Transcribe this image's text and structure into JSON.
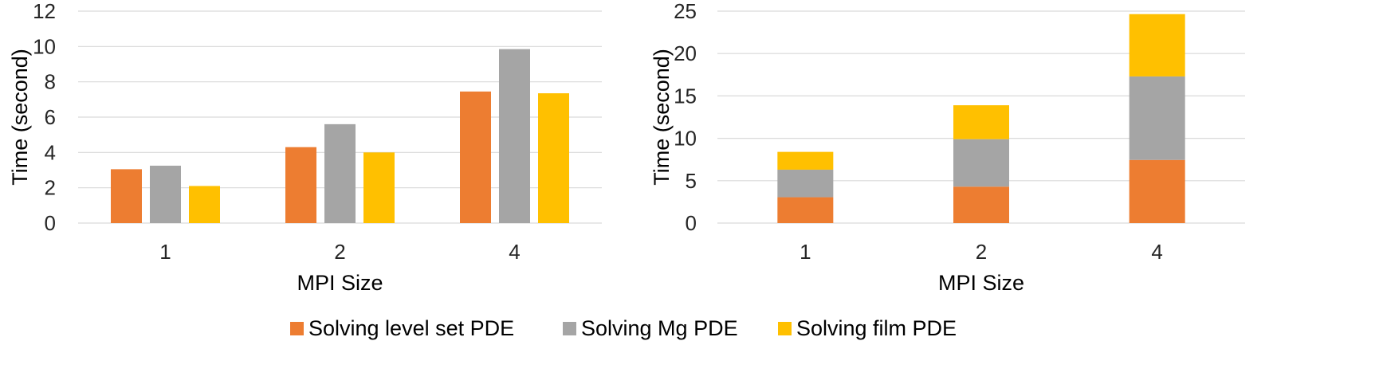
{
  "colors": {
    "level_set": "#ED7D31",
    "mg": "#A5A5A5",
    "film": "#FFC000",
    "grid": "#D9D9D9",
    "text": "#262626"
  },
  "legend": {
    "items": [
      {
        "label": "Solving level set PDE",
        "color": "#ED7D31"
      },
      {
        "label": "Solving Mg PDE",
        "color": "#A5A5A5"
      },
      {
        "label": "Solving film PDE",
        "color": "#FFC000"
      }
    ],
    "placement": "bottom"
  },
  "chart_data": [
    {
      "type": "bar",
      "mode": "clustered",
      "title": "",
      "xlabel": "MPI Size",
      "ylabel": "Time (second)",
      "categories": [
        "1",
        "2",
        "4"
      ],
      "ylim": [
        0,
        12
      ],
      "yticks": [
        0,
        2,
        4,
        6,
        8,
        10,
        12
      ],
      "grid": true,
      "series": [
        {
          "name": "Solving level set PDE",
          "color": "#ED7D31",
          "values": [
            3.05,
            4.3,
            7.45
          ]
        },
        {
          "name": "Solving Mg PDE",
          "color": "#A5A5A5",
          "values": [
            3.25,
            5.6,
            9.85
          ]
        },
        {
          "name": "Solving film PDE",
          "color": "#FFC000",
          "values": [
            2.1,
            4.0,
            7.35
          ]
        }
      ]
    },
    {
      "type": "bar",
      "mode": "stacked",
      "title": "",
      "xlabel": "MPI Size",
      "ylabel": "Time (second)",
      "categories": [
        "1",
        "2",
        "4"
      ],
      "ylim": [
        0,
        25
      ],
      "yticks": [
        0,
        5,
        10,
        15,
        20,
        25
      ],
      "grid": true,
      "series": [
        {
          "name": "Solving level set PDE",
          "color": "#ED7D31",
          "values": [
            3.05,
            4.3,
            7.45
          ]
        },
        {
          "name": "Solving Mg PDE",
          "color": "#A5A5A5",
          "values": [
            3.25,
            5.6,
            9.85
          ]
        },
        {
          "name": "Solving film PDE",
          "color": "#FFC000",
          "values": [
            2.1,
            4.0,
            7.35
          ]
        }
      ]
    }
  ]
}
